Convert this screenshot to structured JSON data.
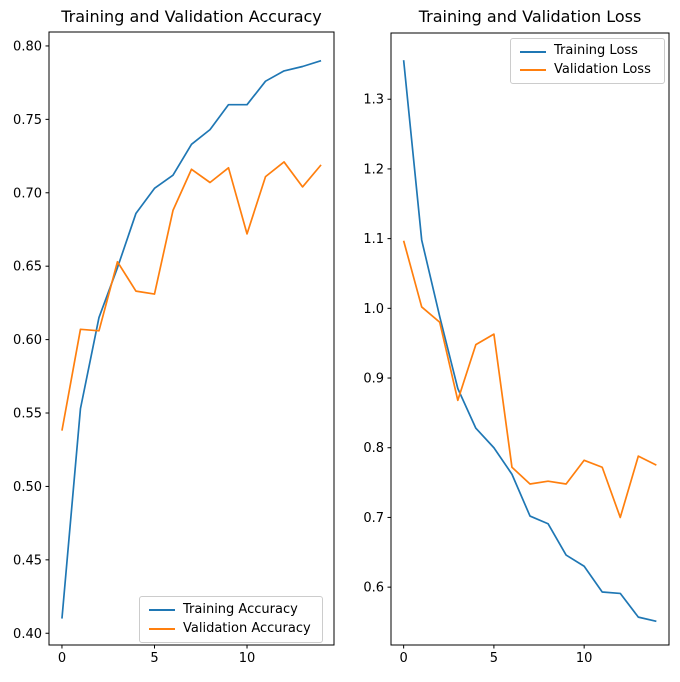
{
  "figure": {
    "background": "#ffffff",
    "text_color": "#000000",
    "spine_color": "#000000"
  },
  "chart_data": [
    {
      "type": "line",
      "title": "Training and Validation Accuracy",
      "x": [
        0,
        1,
        2,
        3,
        4,
        5,
        6,
        7,
        8,
        9,
        10,
        11,
        12,
        13,
        14
      ],
      "series": [
        {
          "name": "Training Accuracy",
          "color": "#1f77b4",
          "values": [
            0.41,
            0.553,
            0.615,
            0.649,
            0.686,
            0.703,
            0.712,
            0.733,
            0.743,
            0.76,
            0.76,
            0.776,
            0.783,
            0.786,
            0.79
          ]
        },
        {
          "name": "Validation Accuracy",
          "color": "#ff7f0e",
          "values": [
            0.538,
            0.607,
            0.606,
            0.653,
            0.633,
            0.631,
            0.688,
            0.716,
            0.707,
            0.717,
            0.672,
            0.711,
            0.721,
            0.704,
            0.719
          ]
        }
      ],
      "xlabel": "",
      "ylabel": "",
      "xlim": [
        -0.7,
        14.7
      ],
      "ylim": [
        0.392,
        0.8095
      ],
      "xticks": [
        {
          "value": 0,
          "label": "0"
        },
        {
          "value": 5,
          "label": "5"
        },
        {
          "value": 10,
          "label": "10"
        }
      ],
      "yticks": [
        {
          "value": 0.4,
          "label": "0.40"
        },
        {
          "value": 0.45,
          "label": "0.45"
        },
        {
          "value": 0.5,
          "label": "0.50"
        },
        {
          "value": 0.55,
          "label": "0.55"
        },
        {
          "value": 0.6,
          "label": "0.60"
        },
        {
          "value": 0.65,
          "label": "0.65"
        },
        {
          "value": 0.7,
          "label": "0.70"
        },
        {
          "value": 0.75,
          "label": "0.75"
        },
        {
          "value": 0.8,
          "label": "0.80"
        }
      ],
      "grid": false,
      "legend_position": "lower right"
    },
    {
      "type": "line",
      "title": "Training and Validation Loss",
      "x": [
        0,
        1,
        2,
        3,
        4,
        5,
        6,
        7,
        8,
        9,
        10,
        11,
        12,
        13,
        14
      ],
      "series": [
        {
          "name": "Training Loss",
          "color": "#1f77b4",
          "values": [
            1.356,
            1.098,
            0.988,
            0.885,
            0.828,
            0.8,
            0.762,
            0.702,
            0.691,
            0.646,
            0.63,
            0.593,
            0.591,
            0.557,
            0.551
          ]
        },
        {
          "name": "Validation Loss",
          "color": "#ff7f0e",
          "values": [
            1.097,
            1.002,
            0.98,
            0.868,
            0.948,
            0.963,
            0.772,
            0.748,
            0.752,
            0.748,
            0.782,
            0.772,
            0.7,
            0.788,
            0.775
          ]
        }
      ],
      "xlabel": "",
      "ylabel": "",
      "xlim": [
        -0.7,
        14.7
      ],
      "ylim": [
        0.517,
        1.395
      ],
      "xticks": [
        {
          "value": 0,
          "label": "0"
        },
        {
          "value": 5,
          "label": "5"
        },
        {
          "value": 10,
          "label": "10"
        }
      ],
      "yticks": [
        {
          "value": 0.6,
          "label": "0.6"
        },
        {
          "value": 0.7,
          "label": "0.7"
        },
        {
          "value": 0.8,
          "label": "0.8"
        },
        {
          "value": 0.9,
          "label": "0.9"
        },
        {
          "value": 1.0,
          "label": "1.0"
        },
        {
          "value": 1.1,
          "label": "1.1"
        },
        {
          "value": 1.2,
          "label": "1.2"
        },
        {
          "value": 1.3,
          "label": "1.3"
        }
      ],
      "grid": false,
      "legend_position": "upper right"
    }
  ]
}
